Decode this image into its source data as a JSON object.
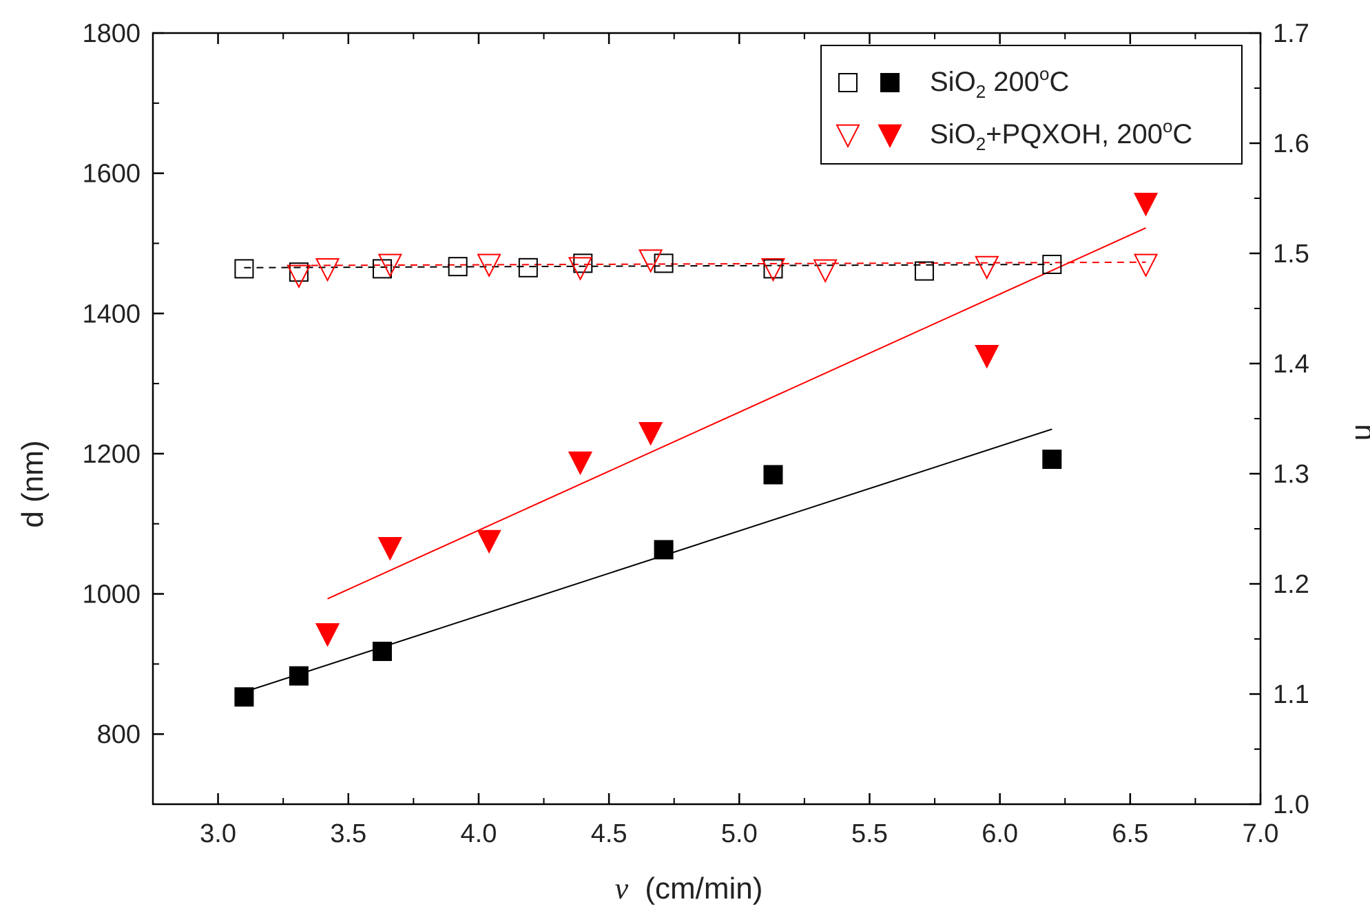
{
  "chart_data": {
    "type": "scatter",
    "xlabel_symbol": "v",
    "xlabel_unit": "(cm/min)",
    "ylabel": "d (nm)",
    "y2label": "n",
    "xlim": [
      2.75,
      7.0
    ],
    "ylim": [
      700,
      1800
    ],
    "y2lim": [
      1.0,
      1.7
    ],
    "x_ticks": [
      "3.0",
      "3.5",
      "4.0",
      "4.5",
      "5.0",
      "5.5",
      "6.0",
      "6.5",
      "7.0"
    ],
    "y_ticks": [
      "800",
      "1000",
      "1200",
      "1400",
      "1600",
      "1800"
    ],
    "y2_ticks": [
      "1.0",
      "1.1",
      "1.2",
      "1.3",
      "1.4",
      "1.5",
      "1.6",
      "1.7"
    ],
    "legend": {
      "position": "top-right",
      "entries": [
        {
          "base": "SiO",
          "sub": "2",
          "rest": " 200",
          "sup": "o",
          "tail": "C"
        },
        {
          "base": "SiO",
          "sub": "2",
          "rest": "+PQXOH, 200",
          "sup": "o",
          "tail": "C"
        }
      ]
    },
    "series": [
      {
        "marker": "filled-square",
        "color": "#000000",
        "axis": "left",
        "x": [
          3.1,
          3.31,
          3.63,
          4.71,
          5.13,
          6.2
        ],
        "y": [
          853,
          883,
          918,
          1063,
          1170,
          1192
        ],
        "fit": {
          "x": [
            3.1,
            6.2
          ],
          "y": [
            860,
            1235
          ]
        }
      },
      {
        "marker": "filled-triangle-down",
        "color": "#ff0000",
        "axis": "left",
        "x": [
          3.42,
          3.66,
          4.04,
          4.39,
          4.66,
          5.95,
          6.56
        ],
        "y": [
          943,
          1066,
          1076,
          1188,
          1230,
          1340,
          1557
        ],
        "fit": {
          "x": [
            3.42,
            6.56
          ],
          "y": [
            993,
            1522
          ]
        }
      },
      {
        "marker": "open-square",
        "color": "#000000",
        "axis": "right",
        "x": [
          3.1,
          3.31,
          3.63,
          3.92,
          4.19,
          4.4,
          4.71,
          5.13,
          5.71,
          6.2
        ],
        "y": [
          1.486,
          1.483,
          1.486,
          1.488,
          1.487,
          1.491,
          1.491,
          1.486,
          1.484,
          1.49
        ],
        "fit": {
          "x": [
            3.1,
            6.2
          ],
          "y": [
            1.487,
            1.49
          ]
        }
      },
      {
        "marker": "open-triangle-down",
        "color": "#ff0000",
        "axis": "right",
        "x": [
          3.31,
          3.42,
          3.66,
          4.04,
          4.39,
          4.66,
          5.13,
          5.33,
          5.95,
          6.56
        ],
        "y": [
          1.48,
          1.486,
          1.49,
          1.49,
          1.487,
          1.494,
          1.486,
          1.485,
          1.488,
          1.49
        ],
        "fit": {
          "x": [
            3.31,
            6.56
          ],
          "y": [
            1.489,
            1.492
          ]
        }
      }
    ]
  }
}
